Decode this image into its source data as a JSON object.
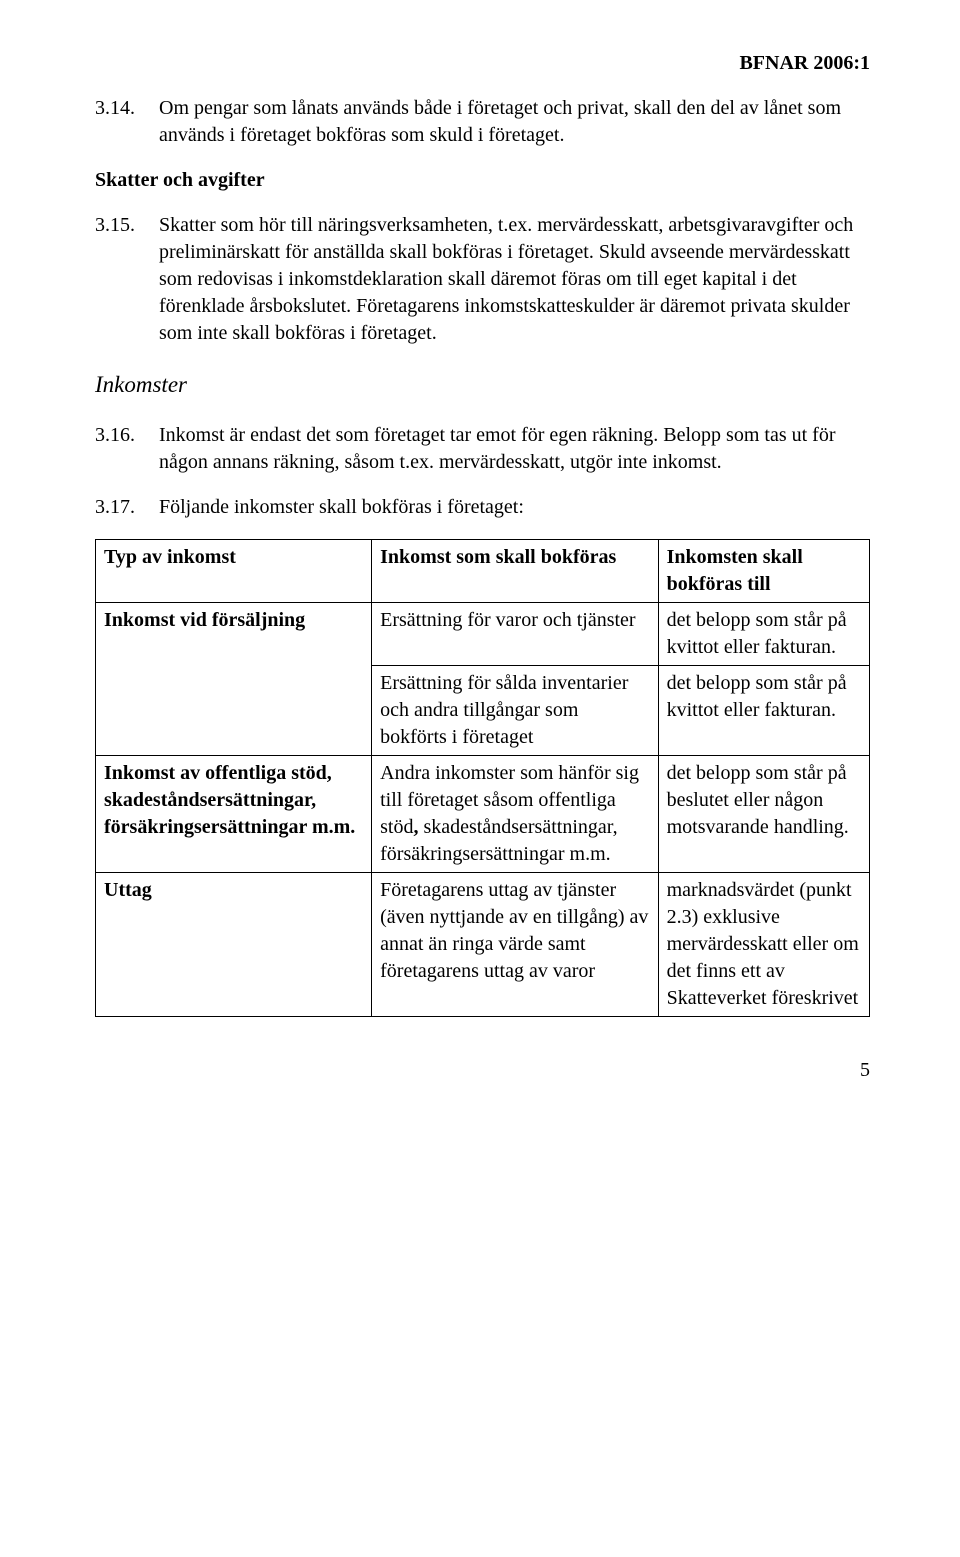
{
  "doc_header": "BFNAR 2006:1",
  "para_3_14": {
    "num": "3.14.",
    "text": "Om pengar som lånats används både i företaget och privat, skall den del av lånet som används i företaget bokföras som skuld i företaget."
  },
  "subheading_skatter": "Skatter och avgifter",
  "para_3_15": {
    "num": "3.15.",
    "text": "Skatter som hör till näringsverksamheten, t.ex. mervärdesskatt, arbetsgivaravgifter och preliminärskatt för anställda skall bokföras i företaget. Skuld avseende mervärdesskatt som redovisas i inkomstdeklaration skall däremot föras om till eget kapital i det förenklade årsbokslutet. Företagarens inkomstskatteskulder är däremot privata skulder som inte skall bokföras i företaget."
  },
  "section_inkomster": "Inkomster",
  "para_3_16": {
    "num": "3.16.",
    "text": "Inkomst är endast det som företaget tar emot för egen räkning. Belopp som tas ut för någon annans räkning, såsom t.ex. mervärdesskatt, utgör inte inkomst."
  },
  "para_3_17": {
    "num": "3.17.",
    "text": "Följande inkomster skall bokföras i företaget:"
  },
  "table": {
    "headers": {
      "col1": "Typ av inkomst",
      "col2": "Inkomst som skall bokföras",
      "col3": "Inkomsten skall bokföras till"
    },
    "rows": [
      {
        "col1": "Inkomst vid försäljning",
        "col1_bold": true,
        "col1_rowspan": 2,
        "col2": "Ersättning för varor och tjänster",
        "col3": "det belopp som står på kvittot eller fakturan."
      },
      {
        "col2": "Ersättning för sålda inventarier och andra tillgångar som bokförts i företaget",
        "col3": "det belopp som står på kvittot eller fakturan."
      },
      {
        "col1": "Inkomst av offentliga stöd, skadeståndsersättningar, försäkringsersättningar m.m.",
        "col1_bold": true,
        "col2_html": "Andra inkomster som hänför sig till företaget såsom offentliga stöd<span class='bold'>,</span> skadeståndsersättningar, försäkringsersättningar m.m.",
        "col3": "det belopp som står på beslutet eller någon motsvarande handling."
      },
      {
        "col1": "Uttag",
        "col1_bold": true,
        "col2": "Företagarens uttag av tjänster (även nyttjande av en tillgång) av annat än ringa värde samt företagarens uttag av varor",
        "col3": "marknadsvärdet (punkt 2.3) exklusive mervärdesskatt eller om det finns ett av Skatteverket föreskrivet"
      }
    ]
  },
  "page_number": "5"
}
